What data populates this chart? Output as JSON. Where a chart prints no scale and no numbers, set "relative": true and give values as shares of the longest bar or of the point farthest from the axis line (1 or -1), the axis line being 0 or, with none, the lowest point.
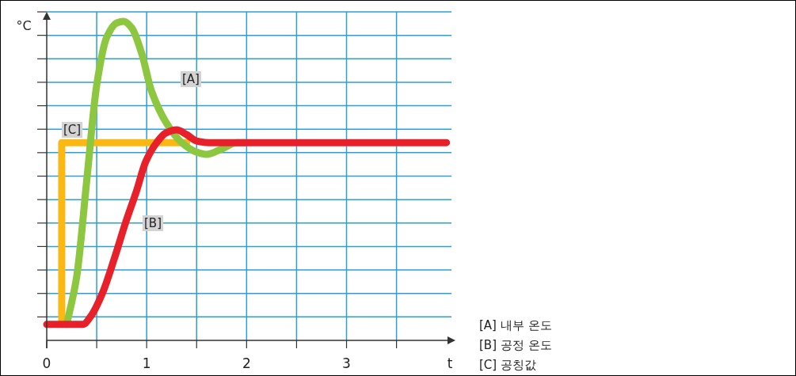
{
  "chart_data": {
    "type": "line",
    "relative": true,
    "xlabel": "t",
    "ylabel": "°C",
    "xlim": [
      0,
      4.05
    ],
    "xticks": [
      0,
      {
        "value": 0.5,
        "label": null
      },
      1,
      {
        "value": 1.5,
        "label": null
      },
      2,
      {
        "value": 2.5,
        "label": null
      },
      3,
      {
        "value": 3.5,
        "label": null
      }
    ],
    "grid": true,
    "line_style": "solid",
    "series": [
      {
        "name": "[C]",
        "color": "#fbb812",
        "x": [
          0.15,
          0.15,
          1.4
        ],
        "values": [
          0.05,
          0.62,
          0.62
        ]
      },
      {
        "name": "[A]",
        "color": "#8dc63f",
        "x": [
          0.2,
          0.3,
          0.4,
          0.5,
          0.6,
          0.7,
          0.77,
          0.85,
          0.95,
          1.05,
          1.2,
          1.35,
          1.5,
          1.6,
          1.75,
          1.9,
          2.0
        ],
        "values": [
          0.05,
          0.2,
          0.5,
          0.8,
          0.95,
          0.995,
          1.0,
          0.98,
          0.9,
          0.78,
          0.68,
          0.62,
          0.59,
          0.583,
          0.6,
          0.62,
          0.62
        ]
      },
      {
        "name": "[B]",
        "color": "#e8202a",
        "x": [
          0,
          0.36,
          0.45,
          0.56,
          0.68,
          0.79,
          0.9,
          0.99,
          1.1,
          1.19,
          1.3,
          1.4,
          1.5,
          1.62,
          1.74,
          2.0,
          3.0,
          4.0
        ],
        "values": [
          0.05,
          0.05,
          0.08,
          0.15,
          0.26,
          0.37,
          0.47,
          0.56,
          0.62,
          0.65,
          0.66,
          0.645,
          0.625,
          0.62,
          0.62,
          0.62,
          0.62,
          0.62
        ]
      }
    ],
    "annotations": [
      "[A]  내부 온도",
      "[B]  공정 온도",
      "[C]  공칭값"
    ]
  }
}
